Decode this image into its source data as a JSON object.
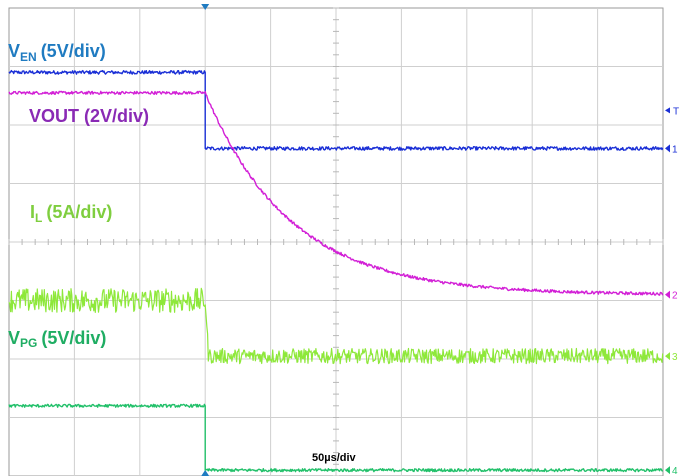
{
  "chart_data": {
    "type": "line",
    "timebase": "50µs/div",
    "grid": true,
    "divisions": {
      "x": 10,
      "y": 8
    },
    "trigger_marker": "T",
    "series": [
      {
        "name": "V",
        "name_sub": "EN",
        "scale": "(5V/div)",
        "color": "#1a2fd6",
        "label_color": "#1f7bc1",
        "channel": "1",
        "x_div": [
          0,
          3.0,
          3.0,
          10
        ],
        "y_div": [
          6.9,
          6.9,
          5.6,
          5.6
        ],
        "noise": 0.03
      },
      {
        "name": "VOUT",
        "name_sub": "",
        "scale": "(2V/div)",
        "color": "#d21fd6",
        "label_color": "#8a2ab5",
        "channel": "2",
        "shape": "exp_decay",
        "x_div": [
          0,
          3.0,
          10
        ],
        "y_high": 6.55,
        "y_low": 3.1,
        "tau_div": 1.3,
        "noise": 0.025
      },
      {
        "name": "I",
        "name_sub": "L",
        "scale": "(5A/div)",
        "color": "#8ee83a",
        "label_color": "#7fce3f",
        "channel": "3",
        "x_div": [
          0,
          3.0,
          3.05,
          10
        ],
        "y_div": [
          3.0,
          3.0,
          2.05,
          2.05
        ],
        "noise": 0.13
      },
      {
        "name": "V",
        "name_sub": "PG",
        "scale": "(5V/div)",
        "color": "#22c06a",
        "label_color": "#1fad63",
        "channel": "4",
        "x_div": [
          0,
          3.0,
          3.0,
          10
        ],
        "y_div": [
          1.2,
          1.2,
          0.1,
          0.1
        ],
        "noise": 0.025
      }
    ]
  }
}
